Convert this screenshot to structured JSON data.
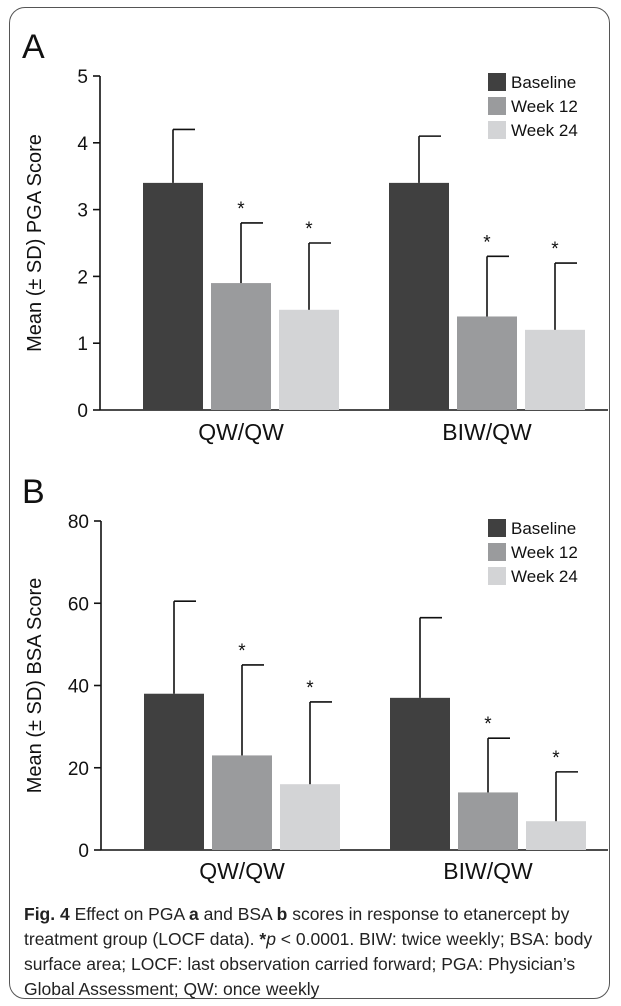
{
  "chart_data": [
    {
      "type": "bar",
      "panel_label": "A",
      "ylabel": "Mean (± SD) PGA Score",
      "xlabel": "",
      "ylim": [
        0,
        5
      ],
      "yticks": [
        "0",
        "1",
        "2",
        "3",
        "4",
        "5"
      ],
      "categories": [
        "QW/QW",
        "BIW/QW"
      ],
      "legend_position": "top-right",
      "series": [
        {
          "name": "Baseline",
          "color": "#404040",
          "values": [
            3.4,
            3.4
          ],
          "sd": [
            0.8,
            0.7
          ],
          "sig": [
            "",
            ""
          ]
        },
        {
          "name": "Week 12",
          "color": "#9a9b9d",
          "values": [
            1.9,
            1.4
          ],
          "sd": [
            0.9,
            0.9
          ],
          "sig": [
            "*",
            "*"
          ]
        },
        {
          "name": "Week 24",
          "color": "#d3d4d6",
          "values": [
            1.5,
            1.2
          ],
          "sd": [
            1.0,
            1.0
          ],
          "sig": [
            "*",
            "*"
          ]
        }
      ]
    },
    {
      "type": "bar",
      "panel_label": "B",
      "ylabel": "Mean (± SD) BSA Score",
      "xlabel": "",
      "ylim": [
        0,
        80
      ],
      "yticks": [
        "0",
        "20",
        "40",
        "60",
        "80"
      ],
      "categories": [
        "QW/QW",
        "BIW/QW"
      ],
      "legend_position": "top-right",
      "series": [
        {
          "name": "Baseline",
          "color": "#404040",
          "values": [
            38,
            37
          ],
          "sd": [
            22.5,
            19.5
          ],
          "sig": [
            "",
            ""
          ]
        },
        {
          "name": "Week 12",
          "color": "#9a9b9d",
          "values": [
            23,
            14
          ],
          "sd": [
            22,
            13.2
          ],
          "sig": [
            "*",
            "*"
          ]
        },
        {
          "name": "Week 24",
          "color": "#d3d4d6",
          "values": [
            16,
            7
          ],
          "sd": [
            20,
            12
          ],
          "sig": [
            "*",
            "*"
          ]
        }
      ]
    }
  ],
  "caption": {
    "fig_label": "Fig. 4",
    "part1": " Effect on PGA ",
    "panel_a": "a",
    "part2": " and BSA ",
    "panel_b": "b",
    "part3": " scores in response to etanercept by treatment group (LOCF data). ",
    "asterisk": "*",
    "p_symbol": "p",
    "part4": " < 0.0001. BIW: twice weekly; BSA: body surface area; LOCF: last observation carried forward; PGA: Physician’s Global Assessment; QW: once weekly"
  }
}
